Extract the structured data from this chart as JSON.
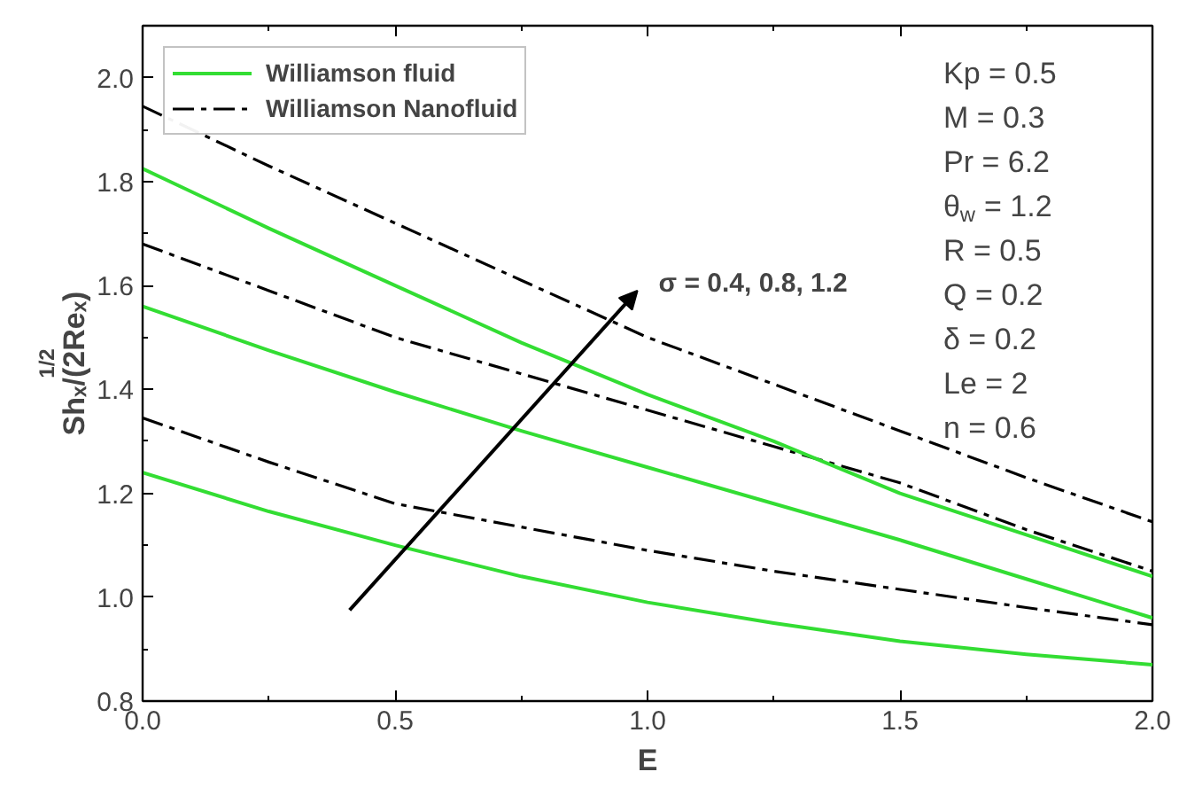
{
  "chart_data": {
    "type": "line",
    "xlabel": "E",
    "ylabel": "Shₓ/(2Reₓ)$^{1/2}$",
    "x": [
      0,
      0.25,
      0.5,
      0.75,
      1.0,
      1.25,
      1.5,
      1.75,
      2.0
    ],
    "xlim": [
      0,
      2.0
    ],
    "ylim": [
      0.8,
      2.1
    ],
    "xticks": [
      {
        "value": 0,
        "label": "0.0"
      },
      0.5,
      {
        "value": 1,
        "label": "1.0"
      },
      1.5,
      {
        "value": 2,
        "label": "2.0"
      }
    ],
    "yticks": [
      0.8,
      {
        "value": 1,
        "label": "1.0"
      },
      1.2,
      1.4,
      1.6,
      1.8,
      {
        "value": 2,
        "label": "2.0"
      }
    ],
    "grid": false,
    "legend": "top left",
    "marker": "none",
    "series": [
      {
        "name": "Williamson fluid",
        "color": "#33dd33",
        "line_style": "solid",
        "values": [
          1.24,
          1.165,
          1.1,
          1.04,
          0.99,
          0.95,
          0.915,
          0.89,
          0.87
        ]
      },
      {
        "name": "Williamson Nanofluid",
        "color": "#000000",
        "line_style": "dashdot",
        "values": [
          1.345,
          1.26,
          1.18,
          1.135,
          1.09,
          1.05,
          1.015,
          0.98,
          0.947
        ]
      },
      {
        "color": "#33dd33",
        "line_style": "solid",
        "values": [
          1.56,
          1.475,
          1.395,
          1.32,
          1.25,
          1.18,
          1.11,
          1.035,
          0.96
        ]
      },
      {
        "color": "#000000",
        "line_style": "dashdot",
        "values": [
          1.68,
          1.59,
          1.5,
          1.43,
          1.36,
          1.29,
          1.22,
          1.13,
          1.05
        ]
      },
      {
        "color": "#33dd33",
        "line_style": "solid",
        "values": [
          1.825,
          1.71,
          1.6,
          1.49,
          1.39,
          1.3,
          1.2,
          1.12,
          1.04
        ]
      },
      {
        "color": "#000000",
        "line_style": "dashdot",
        "values": [
          1.945,
          1.83,
          1.72,
          1.61,
          1.5,
          1.41,
          1.32,
          1.23,
          1.145
        ]
      }
    ],
    "annotations": [
      "σ = 0.4, 0.8, 1.2",
      "Kp = 0.5",
      "M =  0.3",
      "Pr = 6.2",
      "θ$_{w}$ = 1.2",
      "R = 0.5",
      "Q = 0.2",
      "δ = 0.2",
      "Le =  2",
      "n = 0.6"
    ]
  }
}
